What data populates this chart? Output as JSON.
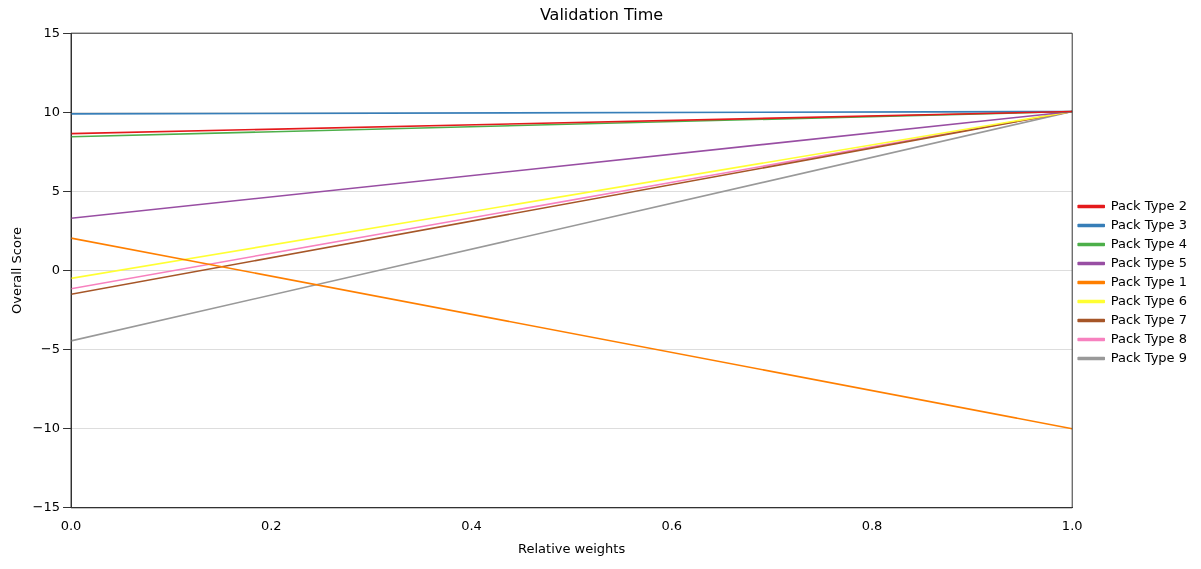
{
  "chart_data": {
    "type": "line",
    "title": "Validation Time",
    "xlabel": "Relative weights",
    "ylabel": "Overall Score",
    "x": [
      0,
      1
    ],
    "series": [
      {
        "name": "Pack Type 2",
        "color": "#e41a1c",
        "values": [
          8.65,
          10.05
        ]
      },
      {
        "name": "Pack Type 3",
        "color": "#377eb8",
        "values": [
          9.9,
          10.05
        ]
      },
      {
        "name": "Pack Type 4",
        "color": "#4daf4a",
        "values": [
          8.45,
          10.05
        ]
      },
      {
        "name": "Pack Type 5",
        "color": "#984ea3",
        "values": [
          3.3,
          10.05
        ]
      },
      {
        "name": "Pack Type 1",
        "color": "#ff7f00",
        "values": [
          2.05,
          -10
        ]
      },
      {
        "name": "Pack Type 6",
        "color": "#ffff33",
        "values": [
          -0.5,
          10.05
        ]
      },
      {
        "name": "Pack Type 7",
        "color": "#a65628",
        "values": [
          -1.5,
          10.05
        ]
      },
      {
        "name": "Pack Type 8",
        "color": "#f781bf",
        "values": [
          -1.15,
          10.05
        ]
      },
      {
        "name": "Pack Type 9",
        "color": "#999999",
        "values": [
          -4.45,
          10.05
        ]
      }
    ],
    "xlim": [
      0,
      1
    ],
    "xticks": [
      {
        "value": 0,
        "label": "0.0"
      },
      {
        "value": 0.2,
        "label": "0.2"
      },
      {
        "value": 0.4,
        "label": "0.4"
      },
      {
        "value": 0.6,
        "label": "0.6"
      },
      {
        "value": 0.8,
        "label": "0.8"
      },
      {
        "value": 1,
        "label": "1.0"
      }
    ],
    "ylim": [
      -15,
      15
    ],
    "yticks": [
      -15,
      -10,
      -5,
      0,
      5,
      10,
      15
    ],
    "grid": "y",
    "legend": "right",
    "marker": "none",
    "line_style": "solid"
  }
}
